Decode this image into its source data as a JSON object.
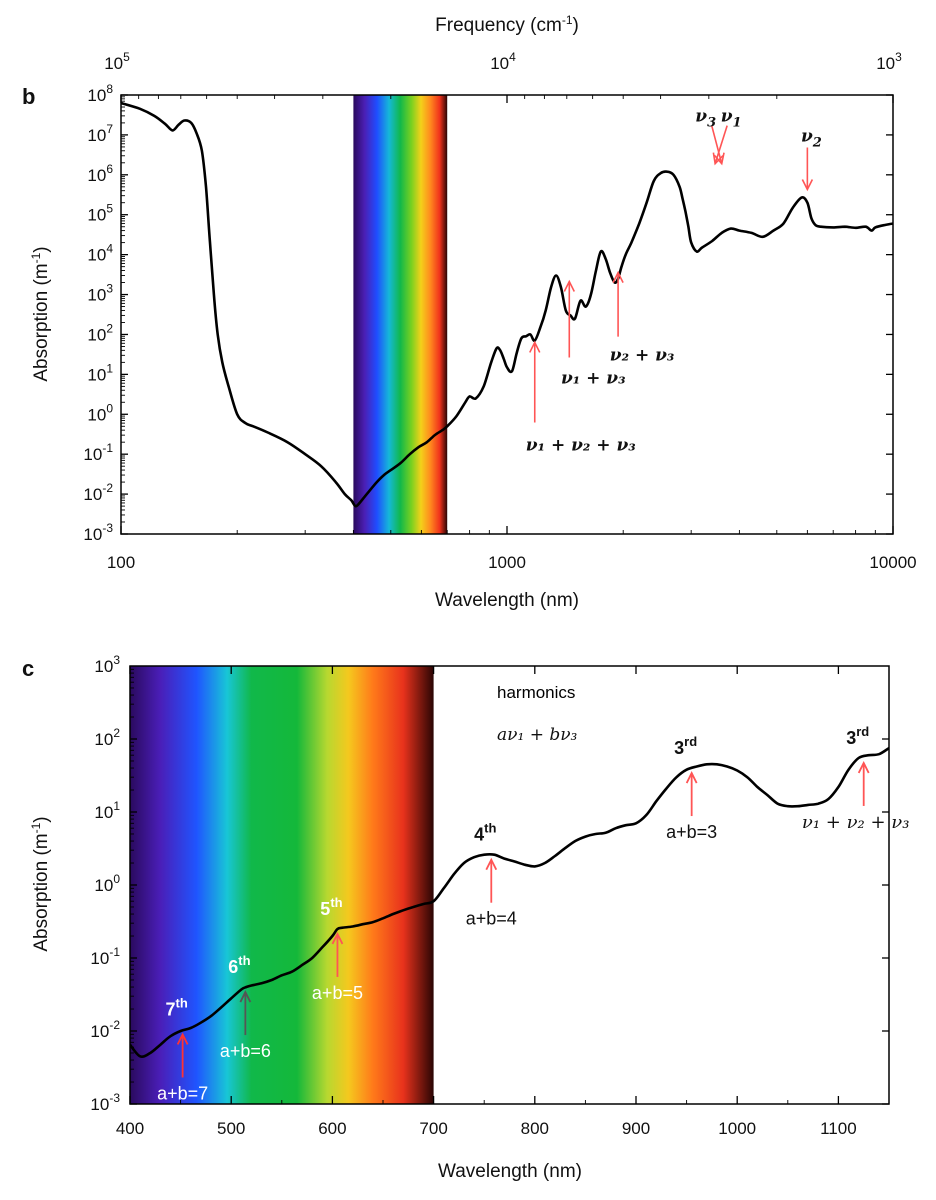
{
  "chart_data": [
    {
      "panel": "b",
      "type": "line",
      "scale": "log-log",
      "xlabel": "Wavelength (nm)",
      "ylabel_main": "Absorption (m",
      "ylabel_sup": "-1",
      "ylabel_end": ")",
      "top_axis_label_main": "Frequency (cm",
      "top_axis_label_sup": "-1",
      "top_axis_label_end": ")",
      "xlim": [
        100,
        10000
      ],
      "ylim": [
        0.001,
        100000000
      ],
      "x_ticks": [
        "100",
        "1000",
        "10000"
      ],
      "top_ticks": [
        {
          "base": "10",
          "exp": "5"
        },
        {
          "base": "10",
          "exp": "4"
        },
        {
          "base": "10",
          "exp": "3"
        }
      ],
      "y_ticks": [
        {
          "base": "10",
          "exp": "8"
        },
        {
          "base": "10",
          "exp": "7"
        },
        {
          "base": "10",
          "exp": "6"
        },
        {
          "base": "10",
          "exp": "5"
        },
        {
          "base": "10",
          "exp": "4"
        },
        {
          "base": "10",
          "exp": "3"
        },
        {
          "base": "10",
          "exp": "2"
        },
        {
          "base": "10",
          "exp": "1"
        },
        {
          "base": "10",
          "exp": "0"
        },
        {
          "base": "10",
          "exp": "-1"
        },
        {
          "base": "10",
          "exp": "-2"
        },
        {
          "base": "10",
          "exp": "-3"
        }
      ],
      "visible_band_nm": [
        400,
        700
      ],
      "series": [
        {
          "x": [
            100,
            112,
            122,
            130,
            136,
            141,
            146,
            152,
            157,
            162,
            166,
            170,
            174,
            178,
            183,
            190,
            200,
            210,
            220,
            240,
            270,
            300,
            330,
            360,
            380,
            395,
            405,
            415,
            425,
            440,
            460,
            480,
            500,
            530,
            560,
            590,
            620,
            650,
            680,
            700,
            740,
            780,
            800,
            830,
            870,
            910,
            940,
            960,
            980,
            1000,
            1030,
            1060,
            1090,
            1120,
            1150,
            1180,
            1220,
            1260,
            1300,
            1340,
            1380,
            1420,
            1460,
            1500,
            1550,
            1600,
            1650,
            1700,
            1750,
            1800,
            1850,
            1900,
            1940,
            1980,
            2030,
            2100,
            2200,
            2300,
            2400,
            2500,
            2600,
            2700,
            2800,
            2850,
            2900,
            2950,
            3000,
            3100,
            3200,
            3400,
            3600,
            3800,
            4000,
            4300,
            4600,
            4900,
            5200,
            5500,
            5800,
            6000,
            6150,
            6300,
            6500,
            7000,
            7500,
            8000,
            8500,
            8800,
            9000,
            9500,
            10000
          ],
          "y": [
            63000000,
            45000000,
            30000000,
            19000000,
            13000000,
            18000000,
            23000000,
            20000000,
            11000000,
            4000000,
            500000,
            20000,
            1000,
            100,
            20,
            5,
            1,
            0.6,
            0.5,
            0.35,
            0.2,
            0.1,
            0.05,
            0.02,
            0.01,
            0.007,
            0.005,
            0.006,
            0.008,
            0.012,
            0.02,
            0.03,
            0.04,
            0.06,
            0.1,
            0.15,
            0.2,
            0.3,
            0.4,
            0.5,
            0.9,
            2,
            2.8,
            2.5,
            5,
            20,
            45,
            40,
            25,
            15,
            12,
            35,
            80,
            90,
            100,
            70,
            150,
            400,
            1500,
            3000,
            1500,
            400,
            300,
            250,
            700,
            500,
            1000,
            4000,
            12000,
            8000,
            3500,
            2000,
            2500,
            5000,
            10000,
            20000,
            60000,
            200000,
            700000,
            1100000,
            1200000,
            1000000,
            500000,
            250000,
            120000,
            50000,
            20000,
            12000,
            15000,
            22000,
            35000,
            45000,
            40000,
            35000,
            28000,
            40000,
            60000,
            150000,
            270000,
            200000,
            80000,
            55000,
            50000,
            48000,
            50000,
            47000,
            50000,
            40000,
            48000,
            55000,
            60000
          ]
        }
      ],
      "annotations": [
        {
          "id": "nu3",
          "text_main": "ν",
          "text_sub": "3",
          "x": 3600,
          "y": 1200000
        },
        {
          "id": "nu1",
          "text_main": "ν",
          "text_sub": "1",
          "x": 3300,
          "y": 1200000
        },
        {
          "id": "nu2",
          "text_main": "ν",
          "text_sub": "2",
          "x": 6000,
          "y": 270000
        },
        {
          "id": "nu2nu3",
          "text": "ν₂ + ν₃",
          "x": 1940,
          "y": 5000
        },
        {
          "id": "nu1nu3",
          "text": "ν₁ + ν₃",
          "x": 1450,
          "y": 3000
        },
        {
          "id": "nu1nu2nu3",
          "text": "ν₁ + ν₂ + ν₃",
          "x": 1180,
          "y": 100
        }
      ]
    },
    {
      "panel": "c",
      "type": "line",
      "scale": "linear-x, log-y",
      "xlabel": "Wavelength (nm)",
      "ylabel_main": "Absorption (m",
      "ylabel_sup": "-1",
      "ylabel_end": ")",
      "xlim": [
        400,
        1150
      ],
      "ylim": [
        0.001,
        1000
      ],
      "x_ticks": [
        "400",
        "500",
        "600",
        "700",
        "800",
        "900",
        "1000",
        "1100"
      ],
      "y_ticks": [
        {
          "base": "10",
          "exp": "3"
        },
        {
          "base": "10",
          "exp": "2"
        },
        {
          "base": "10",
          "exp": "1"
        },
        {
          "base": "10",
          "exp": "0"
        },
        {
          "base": "10",
          "exp": "-1"
        },
        {
          "base": "10",
          "exp": "-2"
        },
        {
          "base": "10",
          "exp": "-3"
        }
      ],
      "visible_band_nm": [
        400,
        700
      ],
      "legend_text_1": "harmonics",
      "legend_text_2": "aν₁ + bν₃",
      "series": [
        {
          "x": [
            400,
            410,
            420,
            430,
            440,
            450,
            460,
            470,
            480,
            490,
            500,
            510,
            515,
            520,
            530,
            540,
            550,
            560,
            570,
            580,
            590,
            600,
            605,
            610,
            620,
            630,
            640,
            650,
            660,
            670,
            680,
            690,
            700,
            710,
            720,
            730,
            740,
            750,
            760,
            770,
            780,
            790,
            800,
            810,
            820,
            830,
            840,
            850,
            860,
            870,
            880,
            890,
            900,
            910,
            920,
            930,
            940,
            950,
            960,
            970,
            980,
            990,
            1000,
            1010,
            1020,
            1030,
            1040,
            1050,
            1060,
            1070,
            1080,
            1090,
            1100,
            1110,
            1120,
            1130,
            1140,
            1150
          ],
          "y": [
            0.0065,
            0.0045,
            0.005,
            0.0065,
            0.0085,
            0.01,
            0.011,
            0.013,
            0.016,
            0.021,
            0.028,
            0.037,
            0.04,
            0.042,
            0.045,
            0.05,
            0.058,
            0.065,
            0.08,
            0.1,
            0.14,
            0.2,
            0.25,
            0.26,
            0.27,
            0.29,
            0.31,
            0.35,
            0.4,
            0.45,
            0.5,
            0.55,
            0.6,
            0.9,
            1.4,
            2,
            2.4,
            2.6,
            2.6,
            2.3,
            2.1,
            1.9,
            1.8,
            2,
            2.5,
            3.2,
            4,
            4.6,
            5,
            5.2,
            6,
            6.6,
            7,
            9,
            14,
            21,
            30,
            38,
            42,
            45,
            45,
            42,
            37,
            30,
            22,
            17,
            13,
            12,
            12,
            12.5,
            13,
            15,
            22,
            38,
            55,
            60,
            62,
            75
          ]
        }
      ],
      "annotations": [
        {
          "id": "ord3a",
          "order": "3",
          "sup": "rd",
          "label": "a+b=3",
          "x": 955,
          "y": 40,
          "label_color": "#111111",
          "order_color": "#111111",
          "arrow_color": "#ff5555"
        },
        {
          "id": "ord3b",
          "order": "3",
          "sup": "rd",
          "label": "ν₁ + ν₂ + ν₃",
          "x": 1125,
          "y": 55,
          "label_color": "#111111",
          "order_color": "#111111",
          "arrow_color": "#ff5555"
        },
        {
          "id": "ord4",
          "order": "4",
          "sup": "th",
          "label": "a+b=4",
          "x": 757,
          "y": 2.6,
          "label_color": "#111111",
          "order_color": "#111111",
          "arrow_color": "#ff5555"
        },
        {
          "id": "ord5",
          "order": "5",
          "sup": "th",
          "label": "a+b=5",
          "x": 605,
          "y": 0.25,
          "label_color": "#ffffff",
          "order_color": "#ffffff",
          "arrow_color": "#ff5555"
        },
        {
          "id": "ord6",
          "order": "6",
          "sup": "th",
          "label": "a+b=6",
          "x": 514,
          "y": 0.04,
          "label_color": "#ffffff",
          "order_color": "#ffffff",
          "arrow_color": "#555555"
        },
        {
          "id": "ord7",
          "order": "7",
          "sup": "th",
          "label": "a+b=7",
          "x": 452,
          "y": 0.0105,
          "label_color": "#ffffff",
          "order_color": "#ffffff",
          "arrow_color": "#ff3333"
        }
      ]
    }
  ],
  "colors": {
    "annotation_arrow": "#ff5555",
    "curve": "#000000"
  }
}
